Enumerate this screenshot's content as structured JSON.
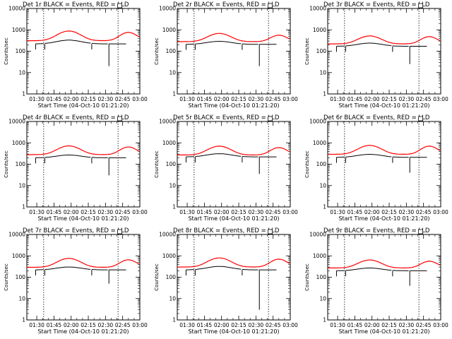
{
  "figure": {
    "x_tick_labels": [
      "01:30",
      "01:45",
      "02:00",
      "02:15",
      "02:30",
      "02:45",
      "03:00"
    ],
    "y_tick_labels": [
      "1",
      "10",
      "100",
      "1000",
      "10000"
    ],
    "series_colors": {
      "events": "#000000",
      "lld": "#ff0000"
    }
  },
  "chart_data": [
    {
      "type": "line",
      "title": "Det 1r BLACK = Events, RED = LLD",
      "xlabel": "Start Time (04-Oct-10 01:21:20)",
      "ylabel": "Counts/sec",
      "y_scale": "log",
      "ylim": [
        1,
        10000
      ],
      "x_ticks": [
        "01:30",
        "01:45",
        "02:00",
        "02:15",
        "02:30",
        "02:45",
        "03:00"
      ],
      "dotted_markers": [
        "01:36",
        "02:41"
      ],
      "grid": false,
      "lld_peaks": [
        880,
        760
      ],
      "lld_base": 310,
      "events_peak": 330,
      "events_base": 220,
      "events_min": 20
    },
    {
      "type": "line",
      "title": "Det 2r BLACK = Events, RED = LLD",
      "xlabel": "Start Time (04-Oct-10 01:21:20)",
      "ylabel": "Counts/sec",
      "y_scale": "log",
      "ylim": [
        1,
        10000
      ],
      "x_ticks": [
        "01:30",
        "01:45",
        "02:00",
        "02:15",
        "02:30",
        "02:45",
        "03:00"
      ],
      "dotted_markers": [
        "01:36",
        "02:41"
      ],
      "grid": false,
      "lld_peaks": [
        680,
        560
      ],
      "lld_base": 280,
      "events_peak": 290,
      "events_base": 210,
      "events_min": 20
    },
    {
      "type": "line",
      "title": "Det 3r BLACK = Events, RED = LLD",
      "xlabel": "Start Time (04-Oct-10 01:21:20)",
      "ylabel": "Counts/sec",
      "y_scale": "log",
      "ylim": [
        1,
        10000
      ],
      "x_ticks": [
        "01:30",
        "01:45",
        "02:00",
        "02:15",
        "02:30",
        "02:45",
        "03:00"
      ],
      "dotted_markers": [
        "01:36",
        "02:41"
      ],
      "grid": false,
      "lld_peaks": [
        520,
        480
      ],
      "lld_base": 220,
      "events_peak": 240,
      "events_base": 170,
      "events_min": 25
    },
    {
      "type": "line",
      "title": "Det 4r BLACK = Events, RED = LLD",
      "xlabel": "Start Time (04-Oct-10 01:21:20)",
      "ylabel": "Counts/sec",
      "y_scale": "log",
      "ylim": [
        1,
        10000
      ],
      "x_ticks": [
        "01:30",
        "01:45",
        "02:00",
        "02:15",
        "02:30",
        "02:45",
        "03:00"
      ],
      "dotted_markers": [
        "01:36",
        "02:41"
      ],
      "grid": false,
      "lld_peaks": [
        720,
        640
      ],
      "lld_base": 280,
      "events_peak": 270,
      "events_base": 200,
      "events_min": 30
    },
    {
      "type": "line",
      "title": "Det 5r BLACK = Events, RED = LLD",
      "xlabel": "Start Time (04-Oct-10 01:21:20)",
      "ylabel": "Counts/sec",
      "y_scale": "log",
      "ylim": [
        1,
        10000
      ],
      "x_ticks": [
        "01:30",
        "01:45",
        "02:00",
        "02:15",
        "02:30",
        "02:45",
        "03:00"
      ],
      "dotted_markers": [
        "01:36",
        "02:41"
      ],
      "grid": false,
      "lld_peaks": [
        700,
        600
      ],
      "lld_base": 270,
      "events_peak": 310,
      "events_base": 220,
      "events_min": 35
    },
    {
      "type": "line",
      "title": "Det 6r BLACK = Events, RED = LLD",
      "xlabel": "Start Time (04-Oct-10 01:21:20)",
      "ylabel": "Counts/sec",
      "y_scale": "log",
      "ylim": [
        1,
        10000
      ],
      "x_ticks": [
        "01:30",
        "01:45",
        "02:00",
        "02:15",
        "02:30",
        "02:45",
        "03:00"
      ],
      "dotted_markers": [
        "01:36",
        "02:41"
      ],
      "grid": false,
      "lld_peaks": [
        760,
        700
      ],
      "lld_base": 290,
      "events_peak": 290,
      "events_base": 210,
      "events_min": 40
    },
    {
      "type": "line",
      "title": "Det 7r BLACK = Events, RED = LLD",
      "xlabel": "Start Time (04-Oct-10 01:21:20)",
      "ylabel": "Counts/sec",
      "y_scale": "log",
      "ylim": [
        1,
        10000
      ],
      "x_ticks": [
        "01:30",
        "01:45",
        "02:00",
        "02:15",
        "02:30",
        "02:45",
        "03:00"
      ],
      "dotted_markers": [
        "01:36",
        "02:41"
      ],
      "grid": false,
      "lld_peaks": [
        760,
        650
      ],
      "lld_base": 290,
      "events_peak": 300,
      "events_base": 220,
      "events_min": 50
    },
    {
      "type": "line",
      "title": "Det 8r BLACK = Events, RED = LLD",
      "xlabel": "Start Time (04-Oct-10 01:21:20)",
      "ylabel": "Counts/sec",
      "y_scale": "log",
      "ylim": [
        1,
        10000
      ],
      "x_ticks": [
        "01:30",
        "01:45",
        "02:00",
        "02:15",
        "02:30",
        "02:45",
        "03:00"
      ],
      "dotted_markers": [
        "01:36",
        "02:41"
      ],
      "grid": false,
      "lld_peaks": [
        800,
        700
      ],
      "lld_base": 300,
      "events_peak": 320,
      "events_base": 220,
      "events_min": 3
    },
    {
      "type": "line",
      "title": "Det 9r BLACK = Events, RED = LLD",
      "xlabel": "Start Time (04-Oct-10 01:21:20)",
      "ylabel": "Counts/sec",
      "y_scale": "log",
      "ylim": [
        1,
        10000
      ],
      "x_ticks": [
        "01:30",
        "01:45",
        "02:00",
        "02:15",
        "02:30",
        "02:45",
        "03:00"
      ],
      "dotted_markers": [
        "01:36",
        "02:41"
      ],
      "grid": false,
      "lld_peaks": [
        640,
        560
      ],
      "lld_base": 270,
      "events_peak": 270,
      "events_base": 200,
      "events_min": 40
    }
  ]
}
